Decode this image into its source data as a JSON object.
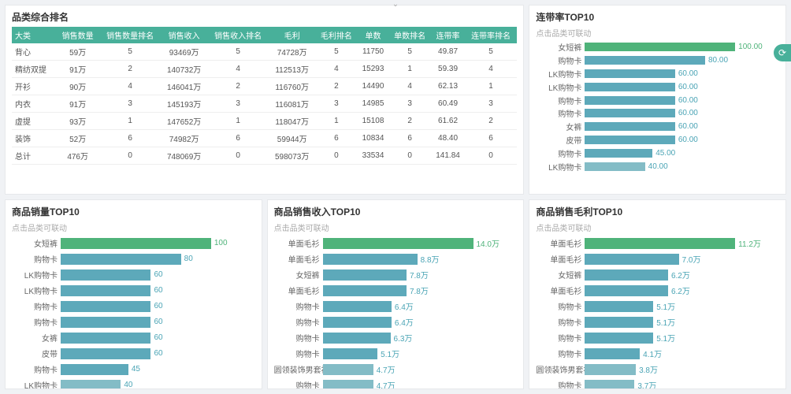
{
  "colors": {
    "header_bg": "#48b09a",
    "bar_primary": "#4fb37a",
    "bar_secondary": "#5da9ba",
    "bar_tertiary": "#83bcc6",
    "panel_border": "#e6e8eb",
    "body_bg": "#f0f2f5",
    "text_muted": "#aaa"
  },
  "table": {
    "title": "品类综合排名",
    "columns": [
      "大类",
      "销售数量",
      "销售数量排名",
      "销售收入",
      "销售收入排名",
      "毛利",
      "毛利排名",
      "单数",
      "单数排名",
      "连带率",
      "连带率排名"
    ],
    "rows": [
      [
        "背心",
        "59万",
        "5",
        "93469万",
        "5",
        "74728万",
        "5",
        "11750",
        "5",
        "49.87",
        "5"
      ],
      [
        "精纺双提",
        "91万",
        "2",
        "140732万",
        "4",
        "112513万",
        "4",
        "15293",
        "1",
        "59.39",
        "4"
      ],
      [
        "开衫",
        "90万",
        "4",
        "146041万",
        "2",
        "116760万",
        "2",
        "14490",
        "4",
        "62.13",
        "1"
      ],
      [
        "内衣",
        "91万",
        "3",
        "145193万",
        "3",
        "116081万",
        "3",
        "14985",
        "3",
        "60.49",
        "3"
      ],
      [
        "虚提",
        "93万",
        "1",
        "147652万",
        "1",
        "118047万",
        "1",
        "15108",
        "2",
        "61.62",
        "2"
      ],
      [
        "装饰",
        "52万",
        "6",
        "74982万",
        "6",
        "59944万",
        "6",
        "10834",
        "6",
        "48.40",
        "6"
      ],
      [
        "总计",
        "476万",
        "0",
        "748069万",
        "0",
        "598073万",
        "0",
        "33534",
        "0",
        "141.84",
        "0"
      ]
    ]
  },
  "chart_top_right": {
    "title": "连带率TOP10",
    "subtitle": "点击品类可联动",
    "max": 100,
    "items": [
      {
        "label": "女短裤",
        "value": 100.0,
        "text": "100.00",
        "style": "green"
      },
      {
        "label": "购物卡",
        "value": 80.0,
        "text": "80.00",
        "style": "sec"
      },
      {
        "label": "LK购物卡",
        "value": 60.0,
        "text": "60.00",
        "style": "sec"
      },
      {
        "label": "LK购物卡",
        "value": 60.0,
        "text": "60.00",
        "style": "sec"
      },
      {
        "label": "购物卡",
        "value": 60.0,
        "text": "60.00",
        "style": "sec"
      },
      {
        "label": "购物卡",
        "value": 60.0,
        "text": "60.00",
        "style": "sec"
      },
      {
        "label": "女裤",
        "value": 60.0,
        "text": "60.00",
        "style": "sec"
      },
      {
        "label": "皮带",
        "value": 60.0,
        "text": "60.00",
        "style": "sec"
      },
      {
        "label": "购物卡",
        "value": 45.0,
        "text": "45.00",
        "style": "sec"
      },
      {
        "label": "LK购物卡",
        "value": 40.0,
        "text": "40.00",
        "style": "ter"
      }
    ]
  },
  "chart_bl": {
    "title": "商品销量TOP10",
    "subtitle": "点击品类可联动",
    "max": 100,
    "items": [
      {
        "label": "女短裤",
        "value": 100,
        "text": "100",
        "style": "green"
      },
      {
        "label": "购物卡",
        "value": 80,
        "text": "80",
        "style": "sec"
      },
      {
        "label": "LK购物卡",
        "value": 60,
        "text": "60",
        "style": "sec"
      },
      {
        "label": "LK购物卡",
        "value": 60,
        "text": "60",
        "style": "sec"
      },
      {
        "label": "购物卡",
        "value": 60,
        "text": "60",
        "style": "sec"
      },
      {
        "label": "购物卡",
        "value": 60,
        "text": "60",
        "style": "sec"
      },
      {
        "label": "女裤",
        "value": 60,
        "text": "60",
        "style": "sec"
      },
      {
        "label": "皮带",
        "value": 60,
        "text": "60",
        "style": "sec"
      },
      {
        "label": "购物卡",
        "value": 45,
        "text": "45",
        "style": "sec"
      },
      {
        "label": "LK购物卡",
        "value": 40,
        "text": "40",
        "style": "ter"
      }
    ]
  },
  "chart_bm": {
    "title": "商品销售收入TOP10",
    "subtitle": "点击品类可联动",
    "max": 14.0,
    "items": [
      {
        "label": "单面毛衫",
        "value": 14.0,
        "text": "14.0万",
        "style": "green"
      },
      {
        "label": "单面毛衫",
        "value": 8.8,
        "text": "8.8万",
        "style": "sec"
      },
      {
        "label": "女短裤",
        "value": 7.8,
        "text": "7.8万",
        "style": "sec"
      },
      {
        "label": "单面毛衫",
        "value": 7.8,
        "text": "7.8万",
        "style": "sec"
      },
      {
        "label": "购物卡",
        "value": 6.4,
        "text": "6.4万",
        "style": "sec"
      },
      {
        "label": "购物卡",
        "value": 6.4,
        "text": "6.4万",
        "style": "sec"
      },
      {
        "label": "购物卡",
        "value": 6.3,
        "text": "6.3万",
        "style": "sec"
      },
      {
        "label": "购物卡",
        "value": 5.1,
        "text": "5.1万",
        "style": "sec"
      },
      {
        "label": "圆领装饰男套衫",
        "value": 4.7,
        "text": "4.7万",
        "style": "ter"
      },
      {
        "label": "购物卡",
        "value": 4.7,
        "text": "4.7万",
        "style": "ter"
      }
    ]
  },
  "chart_br": {
    "title": "商品销售毛利TOP10",
    "subtitle": "点击品类可联动",
    "max": 11.2,
    "items": [
      {
        "label": "单面毛衫",
        "value": 11.2,
        "text": "11.2万",
        "style": "green"
      },
      {
        "label": "单面毛衫",
        "value": 7.0,
        "text": "7.0万",
        "style": "sec"
      },
      {
        "label": "女短裤",
        "value": 6.2,
        "text": "6.2万",
        "style": "sec"
      },
      {
        "label": "单面毛衫",
        "value": 6.2,
        "text": "6.2万",
        "style": "sec"
      },
      {
        "label": "购物卡",
        "value": 5.1,
        "text": "5.1万",
        "style": "sec"
      },
      {
        "label": "购物卡",
        "value": 5.1,
        "text": "5.1万",
        "style": "sec"
      },
      {
        "label": "购物卡",
        "value": 5.1,
        "text": "5.1万",
        "style": "sec"
      },
      {
        "label": "购物卡",
        "value": 4.1,
        "text": "4.1万",
        "style": "sec"
      },
      {
        "label": "圆领装饰男套衫",
        "value": 3.8,
        "text": "3.8万",
        "style": "ter"
      },
      {
        "label": "购物卡",
        "value": 3.7,
        "text": "3.7万",
        "style": "ter"
      }
    ]
  }
}
